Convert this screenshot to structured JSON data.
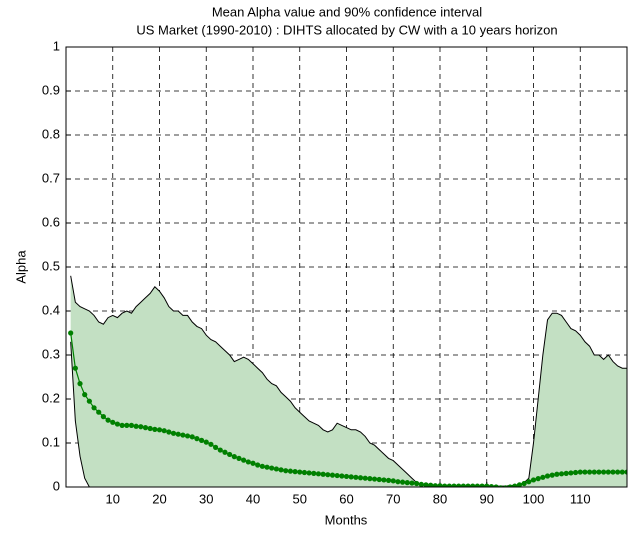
{
  "chart_data": {
    "type": "band-line",
    "title": "Mean Alpha value and 90% confidence interval",
    "subtitle": "US Market (1990-2010) : DIHTS  allocated by CW with a 10 years horizon",
    "x_label": "Months",
    "y_label": "Alpha",
    "xlim": [
      0,
      120
    ],
    "ylim": [
      0,
      1
    ],
    "xticks": [
      10,
      20,
      30,
      40,
      50,
      60,
      70,
      80,
      90,
      100,
      110
    ],
    "yticks": [
      0,
      0.1,
      0.2,
      0.3,
      0.4,
      0.5,
      0.6,
      0.7,
      0.8,
      0.9,
      1
    ],
    "grid": true,
    "x": [
      1,
      2,
      3,
      4,
      5,
      6,
      7,
      8,
      9,
      10,
      11,
      12,
      13,
      14,
      15,
      16,
      17,
      18,
      19,
      20,
      21,
      22,
      23,
      24,
      25,
      26,
      27,
      28,
      29,
      30,
      31,
      32,
      33,
      34,
      35,
      36,
      37,
      38,
      39,
      40,
      41,
      42,
      43,
      44,
      45,
      46,
      47,
      48,
      49,
      50,
      51,
      52,
      53,
      54,
      55,
      56,
      57,
      58,
      59,
      60,
      61,
      62,
      63,
      64,
      65,
      66,
      67,
      68,
      69,
      70,
      71,
      72,
      73,
      74,
      75,
      76,
      77,
      78,
      79,
      80,
      81,
      82,
      83,
      84,
      85,
      86,
      87,
      88,
      89,
      90,
      91,
      92,
      93,
      94,
      95,
      96,
      97,
      98,
      99,
      100,
      101,
      102,
      103,
      104,
      105,
      106,
      107,
      108,
      109,
      110,
      111,
      112,
      113,
      114,
      115,
      116,
      117,
      118,
      119,
      120
    ],
    "band": {
      "color": "#c3e0c3",
      "line_color": "#000000",
      "upper": [
        0.48,
        0.42,
        0.41,
        0.405,
        0.4,
        0.39,
        0.375,
        0.37,
        0.385,
        0.39,
        0.385,
        0.395,
        0.4,
        0.395,
        0.41,
        0.42,
        0.43,
        0.44,
        0.455,
        0.445,
        0.43,
        0.41,
        0.4,
        0.4,
        0.39,
        0.39,
        0.375,
        0.365,
        0.36,
        0.345,
        0.335,
        0.33,
        0.32,
        0.31,
        0.3,
        0.285,
        0.29,
        0.295,
        0.29,
        0.28,
        0.27,
        0.26,
        0.245,
        0.235,
        0.23,
        0.215,
        0.205,
        0.195,
        0.18,
        0.17,
        0.16,
        0.15,
        0.145,
        0.14,
        0.13,
        0.125,
        0.13,
        0.145,
        0.14,
        0.135,
        0.13,
        0.13,
        0.125,
        0.115,
        0.1,
        0.095,
        0.085,
        0.075,
        0.065,
        0.06,
        0.05,
        0.04,
        0.03,
        0.02,
        0.01,
        0.005,
        0.003,
        0.002,
        0.002,
        0.002,
        0.002,
        0.002,
        0.002,
        0.002,
        0.002,
        0.002,
        0.002,
        0.002,
        0.002,
        0.002,
        0.002,
        0.002,
        0.002,
        0.002,
        0.003,
        0.004,
        0.005,
        0.01,
        0.02,
        0.1,
        0.2,
        0.3,
        0.38,
        0.395,
        0.395,
        0.39,
        0.375,
        0.36,
        0.355,
        0.345,
        0.33,
        0.32,
        0.3,
        0.3,
        0.29,
        0.3,
        0.285,
        0.275,
        0.27,
        0.27
      ],
      "lower": [
        0.33,
        0.15,
        0.07,
        0.02,
        0,
        0,
        0,
        0,
        0,
        0,
        0,
        0,
        0,
        0,
        0,
        0,
        0,
        0,
        0,
        0,
        0,
        0,
        0,
        0,
        0,
        0,
        0,
        0,
        0,
        0,
        0,
        0,
        0,
        0,
        0,
        0,
        0,
        0,
        0,
        0,
        0,
        0,
        0,
        0,
        0,
        0,
        0,
        0,
        0,
        0,
        0,
        0,
        0,
        0,
        0,
        0,
        0,
        0,
        0,
        0,
        0,
        0,
        0,
        0,
        0,
        0,
        0,
        0,
        0,
        0,
        0,
        0,
        0,
        0,
        0,
        0,
        0,
        0,
        0,
        0,
        0,
        0,
        0,
        0,
        0,
        0,
        0,
        0,
        0,
        0,
        0,
        0,
        0,
        0,
        0,
        0,
        0,
        0,
        0,
        0,
        0,
        0,
        0,
        0,
        0,
        0,
        0,
        0,
        0,
        0,
        0,
        0,
        0,
        0,
        0,
        0,
        0,
        0,
        0,
        0
      ]
    },
    "series": [
      {
        "color": "#008000",
        "values": [
          0.35,
          0.27,
          0.235,
          0.21,
          0.195,
          0.18,
          0.17,
          0.16,
          0.152,
          0.147,
          0.143,
          0.14,
          0.14,
          0.14,
          0.138,
          0.137,
          0.135,
          0.133,
          0.131,
          0.13,
          0.128,
          0.125,
          0.122,
          0.12,
          0.118,
          0.116,
          0.114,
          0.11,
          0.106,
          0.102,
          0.097,
          0.09,
          0.084,
          0.079,
          0.074,
          0.069,
          0.065,
          0.061,
          0.057,
          0.054,
          0.05,
          0.047,
          0.045,
          0.043,
          0.041,
          0.039,
          0.037,
          0.036,
          0.035,
          0.034,
          0.033,
          0.032,
          0.031,
          0.03,
          0.029,
          0.028,
          0.027,
          0.026,
          0.025,
          0.024,
          0.023,
          0.022,
          0.021,
          0.02,
          0.019,
          0.018,
          0.017,
          0.016,
          0.015,
          0.014,
          0.012,
          0.011,
          0.01,
          0.009,
          0.008,
          0.006,
          0.005,
          0.004,
          0.003,
          0.003,
          0.002,
          0.002,
          0.002,
          0.002,
          0.002,
          0.002,
          0.002,
          0.002,
          0.002,
          0.002,
          0.001,
          0,
          -0.002,
          -0.002,
          0,
          0.002,
          0.005,
          0.008,
          0.012,
          0.016,
          0.019,
          0.022,
          0.025,
          0.027,
          0.029,
          0.03,
          0.031,
          0.032,
          0.033,
          0.034,
          0.034,
          0.034,
          0.034,
          0.034,
          0.034,
          0.034,
          0.034,
          0.034,
          0.034,
          0.034
        ]
      }
    ]
  }
}
